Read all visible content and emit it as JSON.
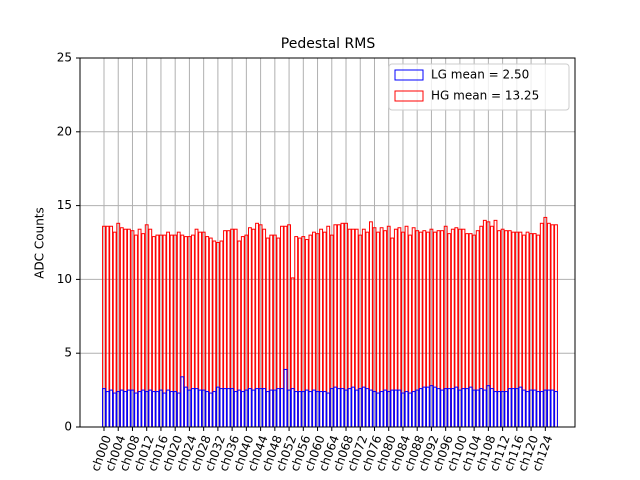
{
  "chart_data": {
    "type": "bar",
    "title": "Pedestal RMS",
    "y_label": "ADC Counts",
    "categories": [
      "ch000",
      null,
      null,
      null,
      "ch004",
      null,
      null,
      null,
      "ch008",
      null,
      null,
      null,
      "ch012",
      null,
      null,
      null,
      "ch016",
      null,
      null,
      null,
      "ch020",
      null,
      null,
      null,
      "ch024",
      null,
      null,
      null,
      "ch028",
      null,
      null,
      null,
      "ch032",
      null,
      null,
      null,
      "ch036",
      null,
      null,
      null,
      "ch040",
      null,
      null,
      null,
      "ch044",
      null,
      null,
      null,
      "ch048",
      null,
      null,
      null,
      "ch052",
      null,
      null,
      null,
      "ch056",
      null,
      null,
      null,
      "ch060",
      null,
      null,
      null,
      "ch064",
      null,
      null,
      null,
      "ch068",
      null,
      null,
      null,
      "ch072",
      null,
      null,
      null,
      "ch076",
      null,
      null,
      null,
      "ch080",
      null,
      null,
      null,
      "ch084",
      null,
      null,
      null,
      "ch088",
      null,
      null,
      null,
      "ch092",
      null,
      null,
      null,
      "ch096",
      null,
      null,
      null,
      "ch100",
      null,
      null,
      null,
      "ch104",
      null,
      null,
      null,
      "ch108",
      null,
      null,
      null,
      "ch112",
      null,
      null,
      null,
      "ch116",
      null,
      null,
      null,
      "ch120",
      null,
      null,
      null,
      "ch124",
      null,
      null,
      null
    ],
    "series": [
      {
        "name": "HG mean = 13.25",
        "color": "#ff0000",
        "values": [
          13.6,
          13.6,
          13.6,
          13.2,
          13.8,
          13.5,
          13.4,
          13.4,
          13.3,
          13.0,
          13.4,
          13.1,
          13.7,
          13.4,
          12.9,
          13.0,
          13.0,
          13.0,
          13.2,
          13.0,
          13.0,
          13.2,
          13.0,
          12.9,
          12.9,
          13.0,
          13.4,
          13.2,
          13.2,
          12.9,
          12.8,
          12.6,
          12.5,
          12.6,
          13.3,
          13.3,
          13.4,
          13.4,
          12.6,
          12.9,
          13.0,
          13.5,
          13.4,
          13.8,
          13.7,
          13.4,
          12.8,
          13.0,
          13.0,
          12.8,
          13.6,
          13.6,
          13.7,
          10.1,
          12.9,
          12.8,
          12.9,
          12.7,
          13.0,
          13.2,
          13.1,
          13.4,
          13.2,
          13.6,
          13.0,
          13.7,
          13.7,
          13.8,
          13.8,
          13.4,
          13.4,
          13.4,
          13.0,
          13.4,
          13.2,
          13.9,
          13.5,
          13.2,
          13.5,
          13.3,
          13.6,
          12.8,
          13.4,
          13.5,
          13.2,
          13.6,
          13.0,
          13.5,
          13.3,
          13.2,
          13.3,
          13.2,
          13.4,
          13.2,
          13.3,
          13.3,
          13.6,
          13.1,
          13.4,
          13.5,
          13.4,
          13.4,
          13.1,
          13.1,
          13.0,
          13.3,
          13.6,
          14.0,
          13.9,
          13.6,
          14.0,
          13.3,
          13.4,
          13.3,
          13.3,
          13.2,
          13.2,
          13.2,
          13.0,
          13.2,
          13.1,
          13.1,
          13.0,
          13.8,
          14.2,
          13.8,
          13.7,
          13.7
        ]
      },
      {
        "name": "LG mean = 2.50",
        "color": "#0000ff",
        "values": [
          2.6,
          2.4,
          2.5,
          2.3,
          2.4,
          2.5,
          2.4,
          2.5,
          2.5,
          2.3,
          2.4,
          2.5,
          2.4,
          2.5,
          2.4,
          2.4,
          2.5,
          2.3,
          2.5,
          2.4,
          2.4,
          2.3,
          3.4,
          2.7,
          2.5,
          2.6,
          2.6,
          2.5,
          2.5,
          2.4,
          2.3,
          2.4,
          2.7,
          2.6,
          2.6,
          2.6,
          2.6,
          2.4,
          2.5,
          2.4,
          2.5,
          2.6,
          2.5,
          2.6,
          2.6,
          2.6,
          2.4,
          2.5,
          2.5,
          2.6,
          2.6,
          3.9,
          2.5,
          2.6,
          2.4,
          2.4,
          2.4,
          2.5,
          2.4,
          2.5,
          2.4,
          2.4,
          2.4,
          2.3,
          2.6,
          2.7,
          2.6,
          2.6,
          2.5,
          2.6,
          2.7,
          2.5,
          2.6,
          2.7,
          2.6,
          2.5,
          2.4,
          2.3,
          2.4,
          2.5,
          2.4,
          2.5,
          2.5,
          2.5,
          2.3,
          2.4,
          2.3,
          2.4,
          2.5,
          2.6,
          2.7,
          2.7,
          2.8,
          2.7,
          2.6,
          2.5,
          2.6,
          2.6,
          2.6,
          2.7,
          2.5,
          2.6,
          2.6,
          2.7,
          2.5,
          2.5,
          2.6,
          2.5,
          2.8,
          2.6,
          2.4,
          2.4,
          2.4,
          2.4,
          2.6,
          2.6,
          2.6,
          2.7,
          2.5,
          2.4,
          2.5,
          2.5,
          2.4,
          2.4,
          2.5,
          2.5,
          2.5,
          2.4
        ]
      }
    ],
    "ylim": [
      0,
      25
    ],
    "yticks": [
      0,
      5,
      10,
      15,
      20,
      25
    ],
    "grid": true,
    "legend": "upper right",
    "legend_order": [
      1,
      0
    ]
  }
}
